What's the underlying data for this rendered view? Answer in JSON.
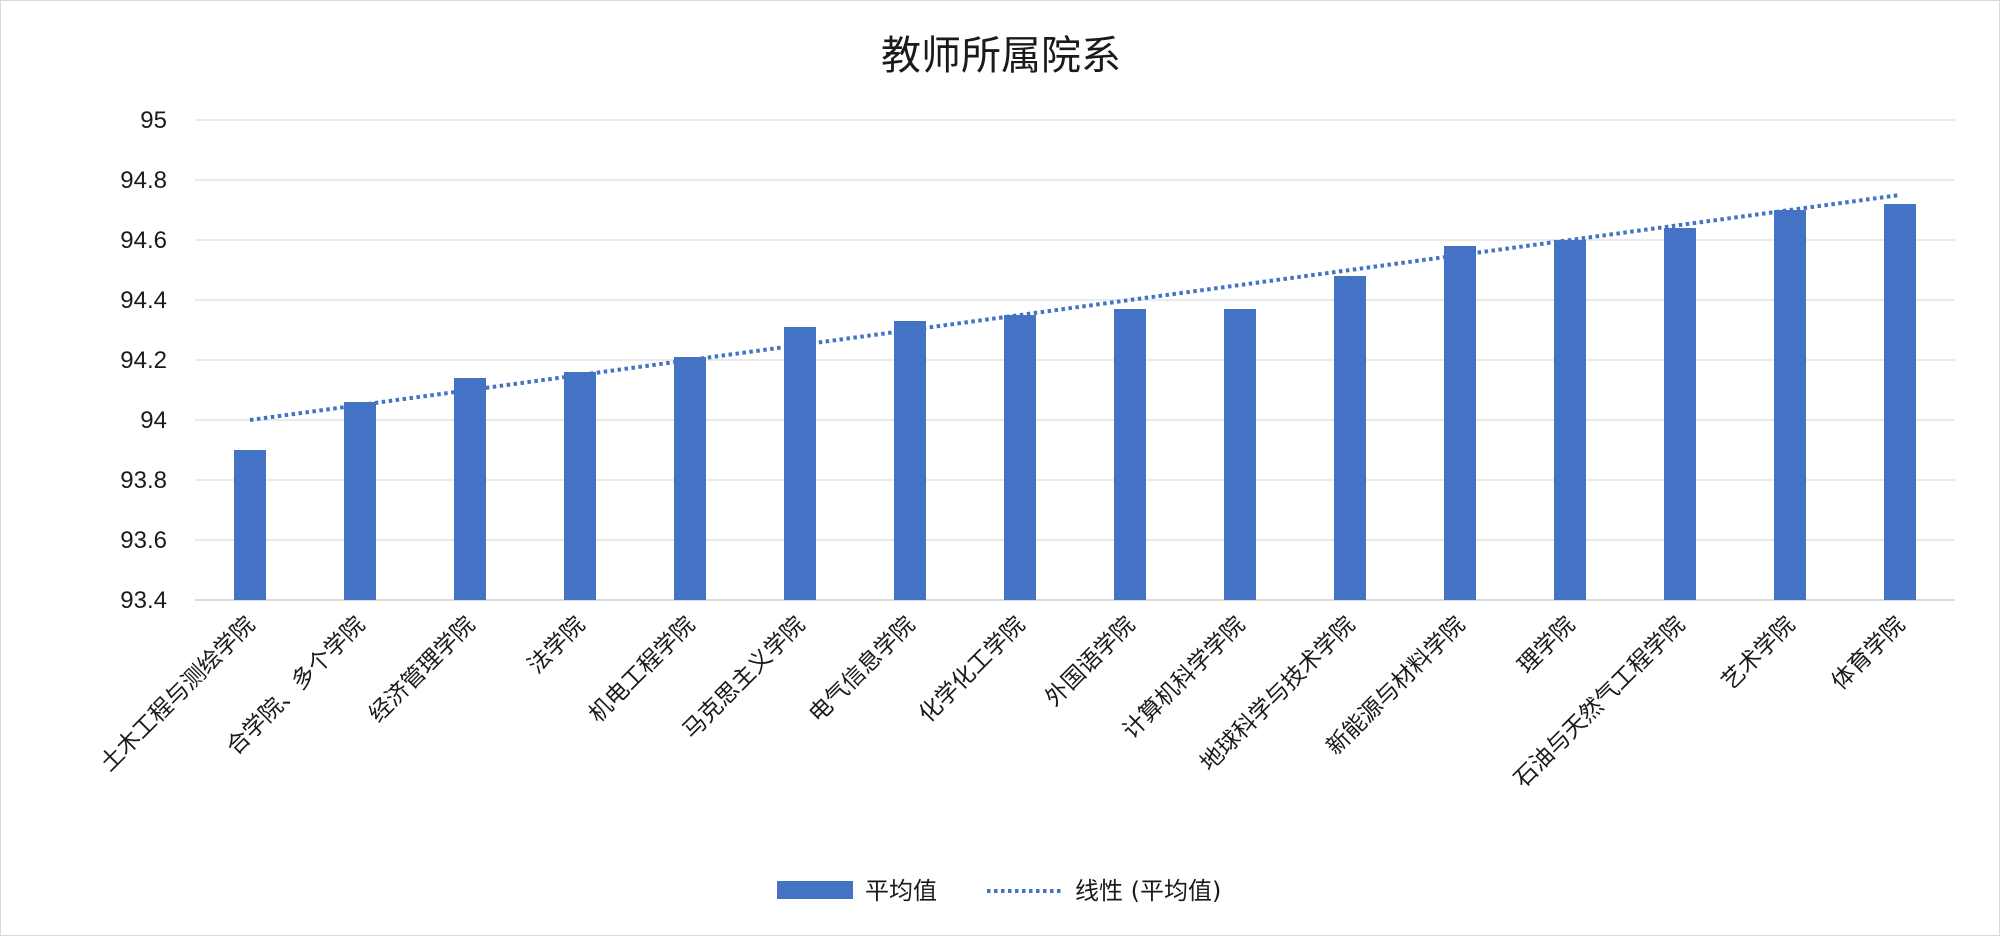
{
  "chart_data": {
    "type": "bar",
    "title": "教师所属院系",
    "xlabel": "",
    "ylabel": "",
    "ylim": [
      93.4,
      95
    ],
    "yticks": [
      93.4,
      93.6,
      93.8,
      94,
      94.2,
      94.4,
      94.6,
      94.8,
      95
    ],
    "grid": true,
    "legend_position": "bottom",
    "categories": [
      "土木工程与测绘学院",
      "合学院、多个学院",
      "经济管理学院",
      "法学院",
      "机电工程学院",
      "马克思主义学院",
      "电气信息学院",
      "化学化工学院",
      "外国语学院",
      "计算机科学学院",
      "地球科学与技术学院",
      "新能源与材料学院",
      "理学院",
      "石油与天然气工程学院",
      "艺术学院",
      "体育学院"
    ],
    "series": [
      {
        "name": "平均值",
        "color": "#4472c4",
        "values": [
          93.9,
          94.06,
          94.14,
          94.16,
          94.21,
          94.31,
          94.33,
          94.35,
          94.37,
          94.37,
          94.48,
          94.58,
          94.6,
          94.64,
          94.7,
          94.72
        ]
      }
    ],
    "trendline": {
      "name": "线性 (平均值)",
      "type": "linear",
      "style": "dotted",
      "color": "#4472c4",
      "start": 94.0,
      "end": 94.75
    }
  }
}
